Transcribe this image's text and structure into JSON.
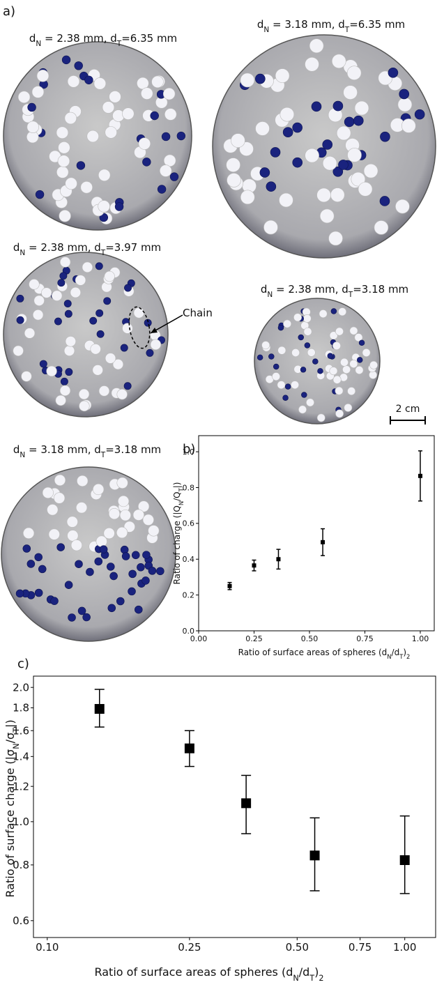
{
  "panel_a": {
    "label": "a)",
    "captions": [
      [
        "d",
        "N",
        " = 2.38 mm, d",
        "T",
        "=6.35 mm"
      ],
      [
        "d",
        "N",
        " = 3.18 mm, d",
        "T",
        "=6.35 mm"
      ],
      [
        "d",
        "N",
        " = 2.38 mm, d",
        "T",
        "=3.97 mm"
      ],
      [
        "d",
        "N",
        " = 2.38 mm, d",
        "T",
        "=3.18 mm"
      ],
      [
        "d",
        "N",
        " = 3.18 mm, d",
        "T",
        "=3.18 mm"
      ]
    ],
    "annotation": "Chain",
    "scale_bar": "2 cm"
  },
  "chart_data": [
    {
      "type": "scatter",
      "panel_label": "b)",
      "x_label": [
        "Ratio of surface areas of spheres (d",
        "N",
        "/d",
        "T",
        ")",
        "2"
      ],
      "y_label": [
        "Ratio of charge (|Q",
        "N",
        "/Q",
        "T",
        "|)"
      ],
      "x": [
        0.14,
        0.25,
        0.36,
        0.56,
        1.0
      ],
      "values": [
        0.25,
        0.365,
        0.4,
        0.495,
        0.865
      ],
      "errors": [
        0.02,
        0.03,
        0.055,
        0.075,
        0.14
      ],
      "color": "#000000",
      "xlim": [
        0,
        1.063
      ],
      "ylim": [
        0,
        1.09
      ],
      "xticks": [
        {
          "value": 0,
          "label": "0.00"
        },
        0.25,
        {
          "value": 0.5,
          "label": "0.50"
        },
        0.75,
        {
          "value": 1,
          "label": "1.00"
        }
      ],
      "yticks": [
        {
          "value": 0,
          "label": "0.0"
        },
        0.2,
        0.4,
        0.6,
        0.8,
        {
          "value": 1,
          "label": "1.0"
        }
      ],
      "xscale": "linear",
      "yscale": "linear"
    },
    {
      "type": "scatter",
      "panel_label": "c)",
      "x_label": [
        "Ratio of surface areas of spheres (d",
        "N",
        "/d",
        "T",
        ")",
        "2"
      ],
      "y_label": [
        "Ratio of surface charge (|σ",
        "N",
        "/σ",
        "T",
        "|)"
      ],
      "x": [
        0.14,
        0.25,
        0.36,
        0.56,
        1.0
      ],
      "values": [
        1.79,
        1.46,
        1.1,
        0.84,
        0.82
      ],
      "lower": [
        1.63,
        1.33,
        0.94,
        0.7,
        0.69
      ],
      "upper": [
        1.98,
        1.6,
        1.27,
        1.02,
        1.03
      ],
      "color": "#000000",
      "xlim": [
        0.0915,
        1.22
      ],
      "ylim": [
        0.55,
        2.12
      ],
      "xticks": [
        {
          "value": 0.1,
          "label": "0.10"
        },
        0.25,
        {
          "value": 0.5,
          "label": "0.50"
        },
        0.75,
        {
          "value": 1,
          "label": "1.00"
        }
      ],
      "yticks": [
        0.6,
        0.8,
        {
          "value": 1,
          "label": "1.0"
        },
        1.2,
        1.4,
        1.6,
        1.8,
        {
          "value": 2,
          "label": "2.0"
        }
      ],
      "xscale": "log",
      "yscale": "log"
    }
  ]
}
